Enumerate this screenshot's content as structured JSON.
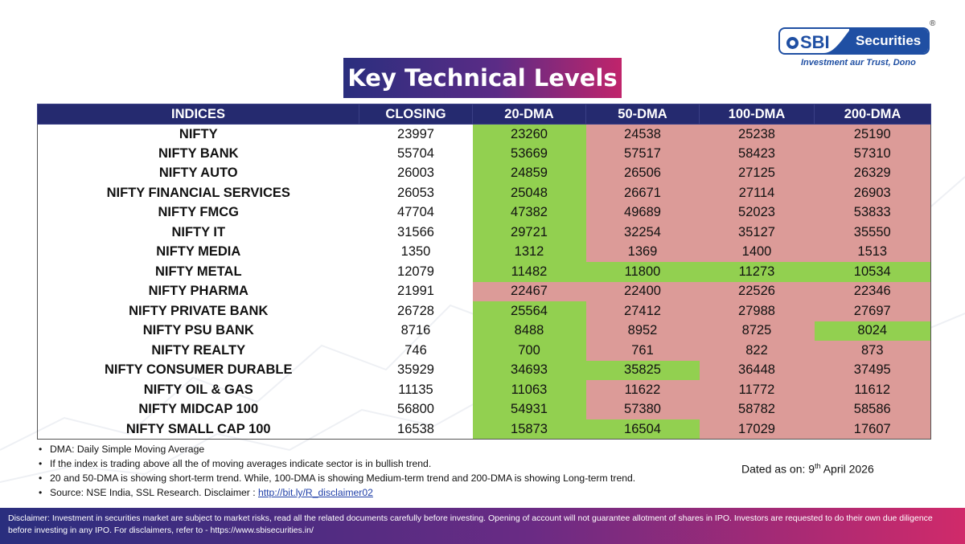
{
  "logo": {
    "brand": "SBI",
    "product": "Securities",
    "registered": "®",
    "tagline": "Investment aur Trust, Dono"
  },
  "title": "Key Technical Levels",
  "table": {
    "headers": [
      "INDICES",
      "CLOSING",
      "20-DMA",
      "50-DMA",
      "100-DMA",
      "200-DMA"
    ],
    "status_colors": {
      "above": "#92d050",
      "below": "#dc9b98"
    },
    "rows": [
      {
        "name": "NIFTY",
        "closing": "23997",
        "dma20": "23260",
        "dma50": "24538",
        "dma100": "25238",
        "dma200": "25190",
        "status": [
          "g",
          "r",
          "r",
          "r"
        ]
      },
      {
        "name": "NIFTY BANK",
        "closing": "55704",
        "dma20": "53669",
        "dma50": "57517",
        "dma100": "58423",
        "dma200": "57310",
        "status": [
          "g",
          "r",
          "r",
          "r"
        ]
      },
      {
        "name": "NIFTY AUTO",
        "closing": "26003",
        "dma20": "24859",
        "dma50": "26506",
        "dma100": "27125",
        "dma200": "26329",
        "status": [
          "g",
          "r",
          "r",
          "r"
        ]
      },
      {
        "name": "NIFTY FINANCIAL SERVICES",
        "closing": "26053",
        "dma20": "25048",
        "dma50": "26671",
        "dma100": "27114",
        "dma200": "26903",
        "status": [
          "g",
          "r",
          "r",
          "r"
        ]
      },
      {
        "name": "NIFTY FMCG",
        "closing": "47704",
        "dma20": "47382",
        "dma50": "49689",
        "dma100": "52023",
        "dma200": "53833",
        "status": [
          "g",
          "r",
          "r",
          "r"
        ]
      },
      {
        "name": "NIFTY IT",
        "closing": "31566",
        "dma20": "29721",
        "dma50": "32254",
        "dma100": "35127",
        "dma200": "35550",
        "status": [
          "g",
          "r",
          "r",
          "r"
        ]
      },
      {
        "name": "NIFTY MEDIA",
        "closing": "1350",
        "dma20": "1312",
        "dma50": "1369",
        "dma100": "1400",
        "dma200": "1513",
        "status": [
          "g",
          "r",
          "r",
          "r"
        ]
      },
      {
        "name": "NIFTY METAL",
        "closing": "12079",
        "dma20": "11482",
        "dma50": "11800",
        "dma100": "11273",
        "dma200": "10534",
        "status": [
          "g",
          "g",
          "g",
          "g"
        ]
      },
      {
        "name": "NIFTY PHARMA",
        "closing": "21991",
        "dma20": "22467",
        "dma50": "22400",
        "dma100": "22526",
        "dma200": "22346",
        "status": [
          "r",
          "r",
          "r",
          "r"
        ]
      },
      {
        "name": "NIFTY PRIVATE BANK",
        "closing": "26728",
        "dma20": "25564",
        "dma50": "27412",
        "dma100": "27988",
        "dma200": "27697",
        "status": [
          "g",
          "r",
          "r",
          "r"
        ]
      },
      {
        "name": "NIFTY PSU BANK",
        "closing": "8716",
        "dma20": "8488",
        "dma50": "8952",
        "dma100": "8725",
        "dma200": "8024",
        "status": [
          "g",
          "r",
          "r",
          "g"
        ]
      },
      {
        "name": "NIFTY REALTY",
        "closing": "746",
        "dma20": "700",
        "dma50": "761",
        "dma100": "822",
        "dma200": "873",
        "status": [
          "g",
          "r",
          "r",
          "r"
        ]
      },
      {
        "name": "NIFTY CONSUMER DURABLE",
        "closing": "35929",
        "dma20": "34693",
        "dma50": "35825",
        "dma100": "36448",
        "dma200": "37495",
        "status": [
          "g",
          "g",
          "r",
          "r"
        ]
      },
      {
        "name": "NIFTY OIL & GAS",
        "closing": "11135",
        "dma20": "11063",
        "dma50": "11622",
        "dma100": "11772",
        "dma200": "11612",
        "status": [
          "g",
          "r",
          "r",
          "r"
        ]
      },
      {
        "name": "NIFTY MIDCAP 100",
        "closing": "56800",
        "dma20": "54931",
        "dma50": "57380",
        "dma100": "58782",
        "dma200": "58586",
        "status": [
          "g",
          "r",
          "r",
          "r"
        ]
      },
      {
        "name": "NIFTY SMALL CAP 100",
        "closing": "16538",
        "dma20": "15873",
        "dma50": "16504",
        "dma100": "17029",
        "dma200": "17607",
        "status": [
          "g",
          "g",
          "r",
          "r"
        ]
      }
    ]
  },
  "notes": {
    "items": [
      "DMA: Daily Simple Moving Average",
      "If the index is trading above all the of moving averages indicate sector is in bullish trend.",
      "20 and 50-DMA is showing short-term trend. While, 100-DMA is showing Medium-term trend and 200-DMA is showing Long-term trend."
    ],
    "source_text": "Source: NSE India, SSL Research. Disclaimer : ",
    "source_link": "http://bit.ly/R_disclaimer02"
  },
  "dated": {
    "prefix": "Dated as on: 9",
    "suffix": "th",
    "rest": " April 2026"
  },
  "footer": {
    "text": "Disclaimer: Investment in securities market are subject to market risks, read all the related documents carefully before investing. Opening of account will not guarantee allotment of shares in IPO. Investors are requested to do their own due diligence before investing in any IPO. For disclaimers, refer to - https://www.sbisecurities.in/"
  }
}
